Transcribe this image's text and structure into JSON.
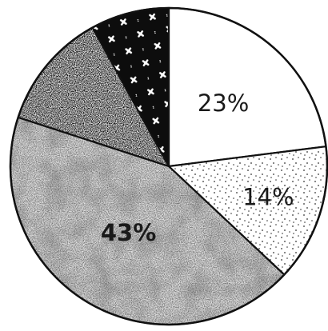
{
  "chart_data": {
    "type": "pie",
    "title": "",
    "start_angle_deg": 0,
    "direction": "clockwise",
    "slices": [
      {
        "label": "23%",
        "value": 23,
        "pattern": "white"
      },
      {
        "label": "14%",
        "value": 14,
        "pattern": "dots"
      },
      {
        "label": "43%",
        "value": 43,
        "pattern": "light-stipple"
      },
      {
        "label": "",
        "value": 12,
        "pattern": "dark-stipple"
      },
      {
        "label": "",
        "value": 8,
        "pattern": "black-stars"
      }
    ]
  }
}
